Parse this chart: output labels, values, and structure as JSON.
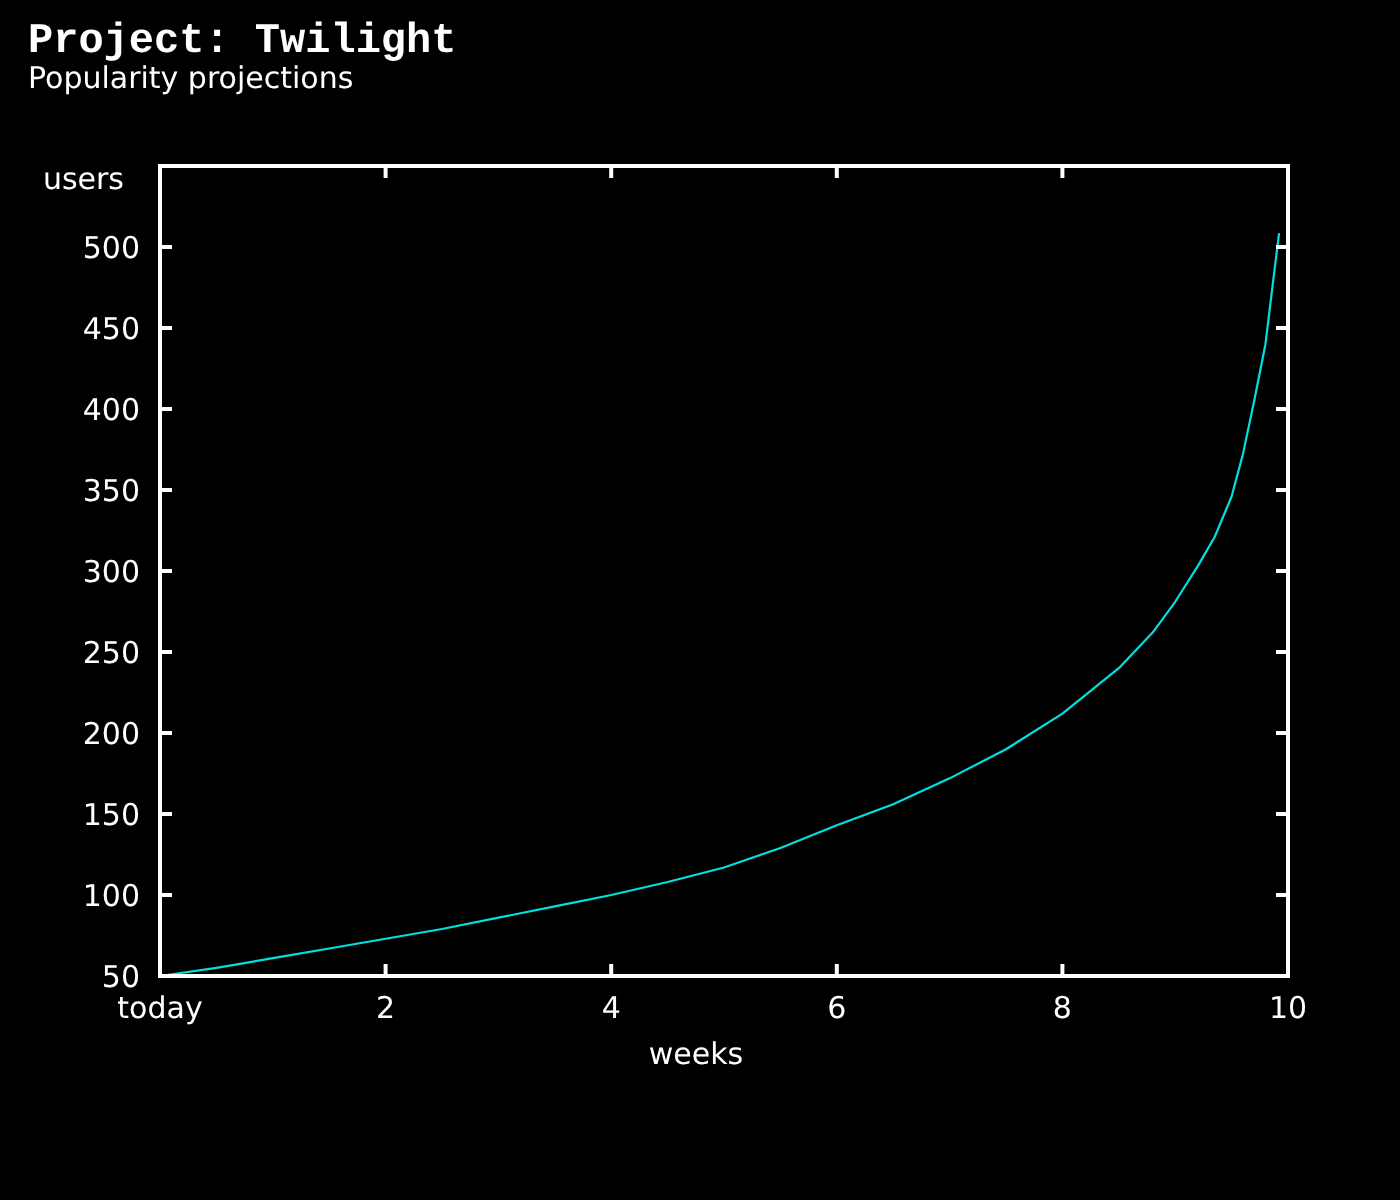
{
  "chart_data": {
    "type": "line",
    "title": "Project: Twilight",
    "subtitle": "Popularity projections",
    "xlabel": "weeks",
    "ylabel": "users",
    "x": [
      0,
      0.5,
      1,
      1.5,
      2,
      2.5,
      3,
      3.5,
      4,
      4.5,
      5,
      5.5,
      6,
      6.5,
      7,
      7.5,
      8,
      8.5,
      8.8,
      9,
      9.2,
      9.35,
      9.5,
      9.6,
      9.7,
      9.8,
      9.87,
      9.92
    ],
    "values": [
      50,
      55,
      61,
      67,
      73,
      79,
      86,
      93,
      100,
      108,
      117,
      129,
      143,
      156,
      172,
      190,
      212,
      240,
      262,
      281,
      303,
      321,
      346,
      372,
      405,
      440,
      480,
      508
    ],
    "color": "#00e0e0",
    "xlim": [
      0,
      10
    ],
    "xticks": [
      {
        "value": 0,
        "label": "today"
      },
      2,
      4,
      6,
      8,
      10
    ],
    "ylim": [
      50,
      550
    ],
    "yticks": [
      50,
      100,
      150,
      200,
      250,
      300,
      350,
      400,
      450,
      500
    ]
  }
}
